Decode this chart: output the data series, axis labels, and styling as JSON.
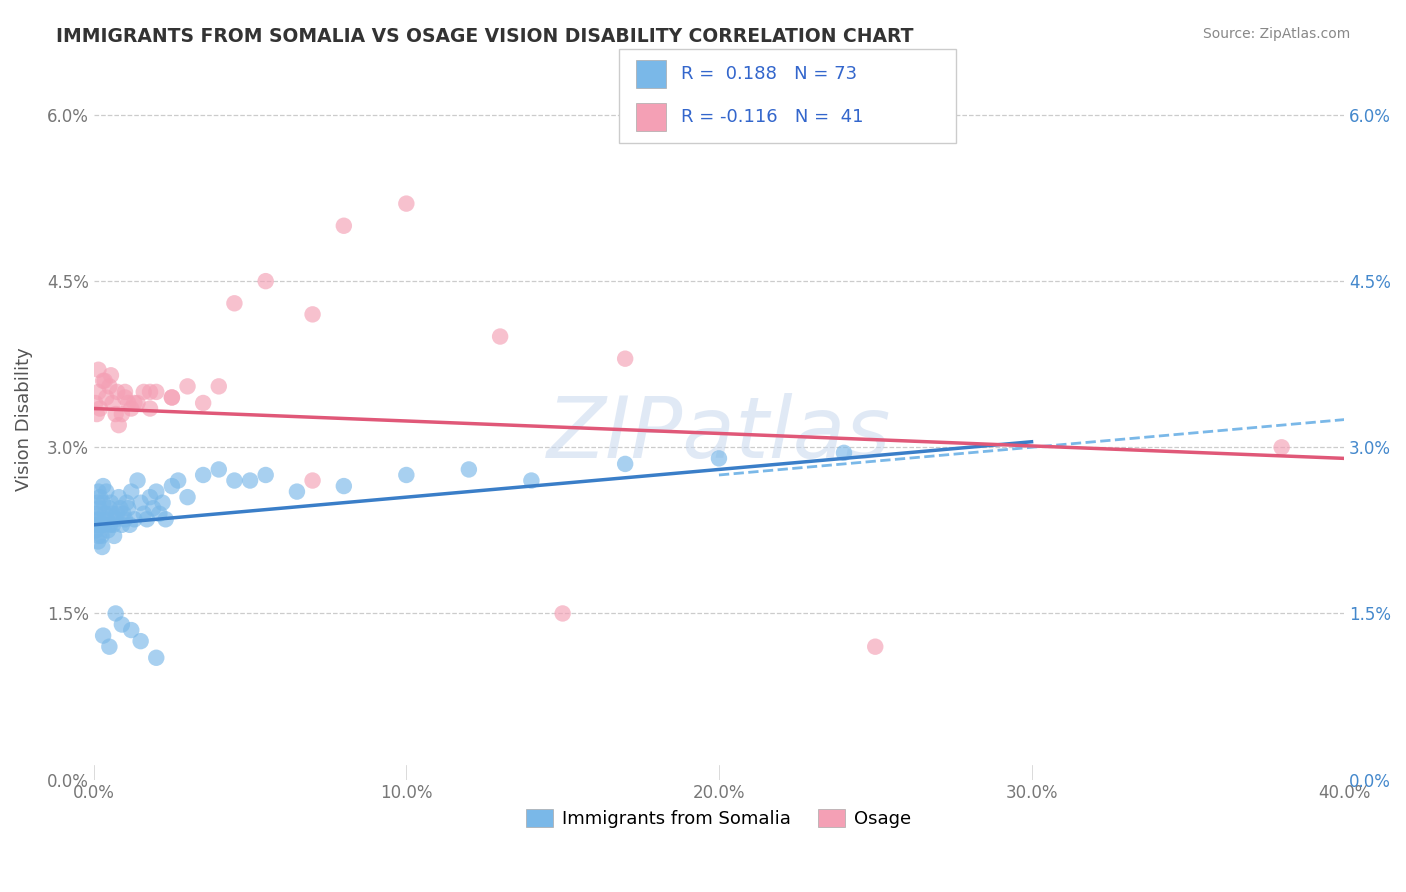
{
  "title": "IMMIGRANTS FROM SOMALIA VS OSAGE VISION DISABILITY CORRELATION CHART",
  "source": "Source: ZipAtlas.com",
  "ylabel": "Vision Disability",
  "x_min": 0.0,
  "x_max": 40.0,
  "y_min": 0.0,
  "y_max": 6.5,
  "y_ticks": [
    0.0,
    1.5,
    3.0,
    4.5,
    6.0
  ],
  "x_ticks": [
    0.0,
    10.0,
    20.0,
    30.0,
    40.0
  ],
  "blue_color": "#7ab8e8",
  "pink_color": "#f4a0b5",
  "blue_line_color": "#3a7ec8",
  "pink_line_color": "#e05878",
  "dashed_line_color": "#7ab8e8",
  "watermark": "ZIPatlas",
  "blue_line_x0": 0.0,
  "blue_line_y0": 2.3,
  "blue_line_x1": 30.0,
  "blue_line_y1": 3.05,
  "pink_line_x0": 0.0,
  "pink_line_y0": 3.35,
  "pink_line_x1": 40.0,
  "pink_line_y1": 2.9,
  "dashed_x0": 20.0,
  "dashed_y0": 2.75,
  "dashed_x1": 40.0,
  "dashed_y1": 3.25,
  "somalia_x": [
    0.05,
    0.07,
    0.08,
    0.1,
    0.12,
    0.13,
    0.14,
    0.15,
    0.16,
    0.17,
    0.18,
    0.2,
    0.22,
    0.25,
    0.27,
    0.3,
    0.3,
    0.35,
    0.37,
    0.4,
    0.42,
    0.45,
    0.5,
    0.52,
    0.55,
    0.6,
    0.62,
    0.65,
    0.7,
    0.75,
    0.8,
    0.85,
    0.9,
    0.95,
    1.0,
    1.05,
    1.1,
    1.15,
    1.2,
    1.3,
    1.4,
    1.5,
    1.6,
    1.7,
    1.8,
    1.9,
    2.0,
    2.1,
    2.2,
    2.3,
    2.5,
    2.7,
    3.0,
    3.5,
    4.0,
    4.5,
    5.0,
    5.5,
    6.5,
    8.0,
    10.0,
    12.0,
    14.0,
    17.0,
    20.0,
    24.0,
    0.3,
    0.5,
    0.7,
    0.9,
    1.2,
    1.5,
    2.0
  ],
  "somalia_y": [
    2.3,
    2.25,
    2.4,
    2.35,
    2.5,
    2.3,
    2.15,
    2.6,
    2.2,
    2.35,
    2.45,
    2.55,
    2.3,
    2.2,
    2.1,
    2.5,
    2.65,
    2.3,
    2.4,
    2.6,
    2.35,
    2.25,
    2.45,
    2.3,
    2.5,
    2.4,
    2.3,
    2.2,
    2.35,
    2.4,
    2.55,
    2.45,
    2.3,
    2.4,
    2.35,
    2.5,
    2.45,
    2.3,
    2.6,
    2.35,
    2.7,
    2.5,
    2.4,
    2.35,
    2.55,
    2.45,
    2.6,
    2.4,
    2.5,
    2.35,
    2.65,
    2.7,
    2.55,
    2.75,
    2.8,
    2.7,
    2.7,
    2.75,
    2.6,
    2.65,
    2.75,
    2.8,
    2.7,
    2.85,
    2.9,
    2.95,
    1.3,
    1.2,
    1.5,
    1.4,
    1.35,
    1.25,
    1.1
  ],
  "osage_x": [
    0.05,
    0.1,
    0.15,
    0.2,
    0.3,
    0.4,
    0.5,
    0.6,
    0.7,
    0.8,
    0.9,
    1.0,
    1.1,
    1.2,
    1.4,
    1.6,
    1.8,
    2.0,
    2.5,
    3.0,
    3.5,
    4.5,
    5.5,
    7.0,
    8.0,
    10.0,
    13.0,
    17.0,
    0.15,
    0.35,
    0.55,
    0.75,
    1.0,
    1.3,
    1.8,
    2.5,
    4.0,
    7.0,
    15.0,
    25.0,
    38.0
  ],
  "osage_y": [
    3.4,
    3.3,
    3.5,
    3.35,
    3.6,
    3.45,
    3.55,
    3.4,
    3.3,
    3.2,
    3.3,
    3.5,
    3.4,
    3.35,
    3.4,
    3.5,
    3.35,
    3.5,
    3.45,
    3.55,
    3.4,
    4.3,
    4.5,
    4.2,
    5.0,
    5.2,
    4.0,
    3.8,
    3.7,
    3.6,
    3.65,
    3.5,
    3.45,
    3.4,
    3.5,
    3.45,
    3.55,
    2.7,
    1.5,
    1.2,
    3.0
  ]
}
